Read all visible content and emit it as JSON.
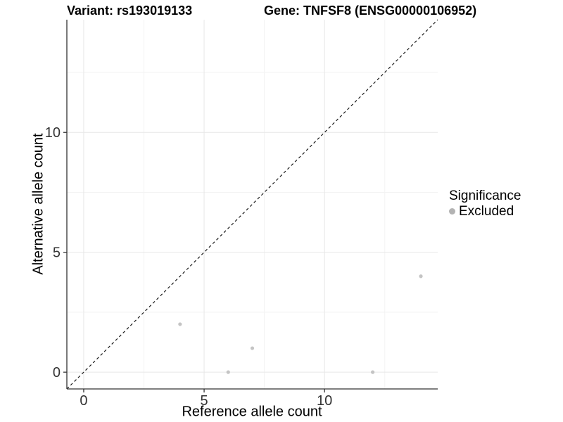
{
  "header": {
    "variant_title": "Variant: rs193019133",
    "gene_title": "Gene: TNFSF8 (ENSG00000106952)"
  },
  "chart_data": {
    "type": "scatter",
    "title": "Variant: rs193019133 | Gene: TNFSF8 (ENSG00000106952)",
    "xlabel": "Reference allele count",
    "ylabel": "Alternative allele count",
    "xlim": [
      -0.7,
      14.7
    ],
    "ylim": [
      -0.7,
      14.7
    ],
    "x_ticks": [
      0,
      5,
      10
    ],
    "y_ticks": [
      0,
      5,
      10
    ],
    "x_minor_ticks": [
      2.5,
      7.5,
      12.5
    ],
    "y_minor_ticks": [
      2.5,
      7.5,
      12.5
    ],
    "grid": "major+minor",
    "reference_line": {
      "kind": "identity y=x",
      "style": "dashed"
    },
    "series": [
      {
        "name": "Excluded",
        "points": [
          [
            4,
            2
          ],
          [
            6,
            0
          ],
          [
            7,
            1
          ],
          [
            12,
            0
          ],
          [
            14,
            4
          ]
        ]
      }
    ],
    "legend": {
      "title": "Significance",
      "position": "right",
      "items": [
        {
          "label": "Excluded"
        }
      ]
    }
  },
  "colors": {
    "background": "#ffffff",
    "axis_line": "#333333",
    "tick_label": "#333333",
    "grid_major": "#e7e7e7",
    "grid_minor": "#f3f3f3",
    "point_fill": "#c4c4c4",
    "legend_dot": "#b3b3b3",
    "identity_line": "#1a1a1a"
  }
}
